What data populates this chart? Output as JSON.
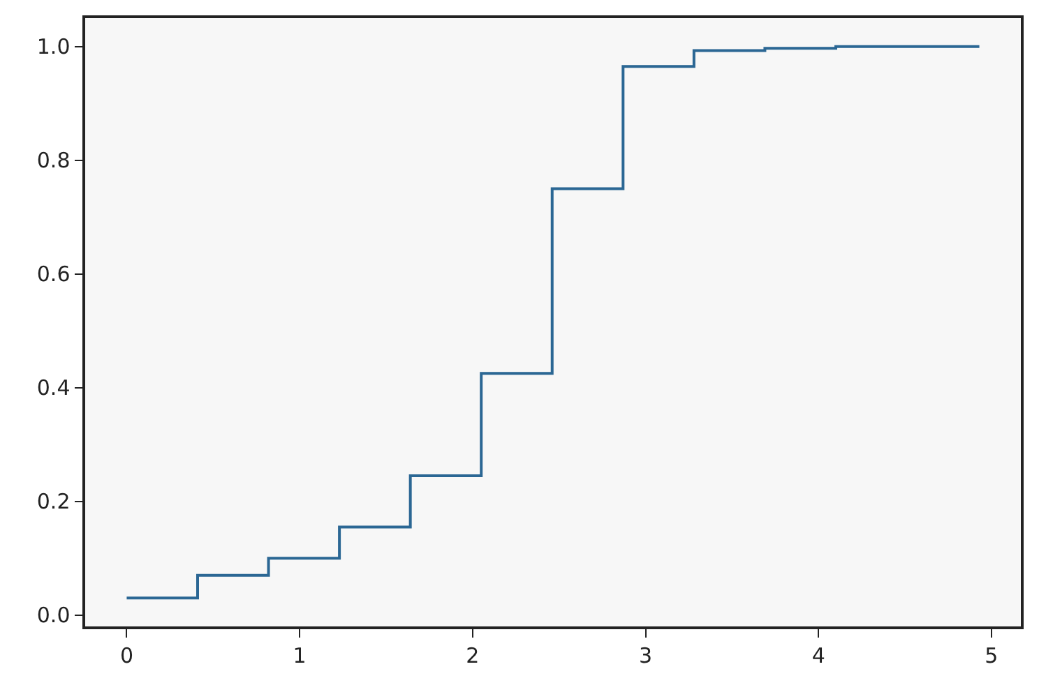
{
  "chart_data": {
    "type": "step",
    "x": [
      0,
      0.41,
      0.82,
      1.23,
      1.64,
      2.05,
      2.46,
      2.87,
      3.28,
      3.69,
      4.1,
      4.93
    ],
    "series": [
      {
        "color": "#2b6794",
        "values": [
          0.03,
          0.07,
          0.1,
          0.155,
          0.245,
          0.425,
          0.75,
          0.965,
          0.993,
          0.997,
          1.0,
          1.0
        ]
      }
    ],
    "xlim": [
      -0.24,
      5.17
    ],
    "xticks": [
      0,
      1,
      2,
      3,
      4,
      5
    ],
    "ylim": [
      -0.02,
      1.05
    ],
    "yticks": [
      {
        "value": 0,
        "label": "0.0"
      },
      {
        "value": 0.2,
        "label": "0.2"
      },
      {
        "value": 0.4,
        "label": "0.4"
      },
      {
        "value": 0.6,
        "label": "0.6"
      },
      {
        "value": 0.8,
        "label": "0.8"
      },
      {
        "value": 1,
        "label": "1.0"
      }
    ],
    "grid": false,
    "line_style": "solid"
  }
}
